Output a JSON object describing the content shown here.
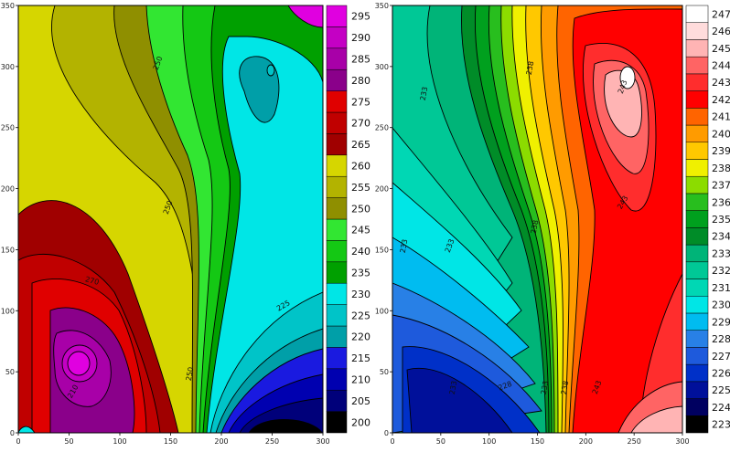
{
  "chart_data": [
    {
      "type": "heatmap",
      "subtype": "filled-contour",
      "title": "",
      "xlabel": "",
      "ylabel": "",
      "xlim": [
        0,
        300
      ],
      "ylim": [
        0,
        350
      ],
      "x_ticks": [
        "0",
        "50",
        "100",
        "150",
        "200",
        "250",
        "300"
      ],
      "y_ticks": [
        "0",
        "50",
        "100",
        "150",
        "200",
        "250",
        "300",
        "350"
      ],
      "colorbar": {
        "levels": [
          200,
          205,
          210,
          215,
          220,
          225,
          230,
          235,
          240,
          245,
          250,
          255,
          260,
          265,
          270,
          275,
          280,
          285,
          290,
          295
        ],
        "labels": [
          "200",
          "205",
          "210",
          "215",
          "220",
          "225",
          "230",
          "235",
          "240",
          "245",
          "250",
          "255",
          "260",
          "265",
          "270",
          "275",
          "280",
          "285",
          "290",
          "295"
        ],
        "colors": [
          "#000000",
          "#00007a",
          "#0000b0",
          "#1a1ae0",
          "#009fa8",
          "#00c4c8",
          "#00e6e6",
          "#00a000",
          "#14c814",
          "#32e632",
          "#8f8f00",
          "#b3b300",
          "#d6d600",
          "#a00000",
          "#c00000",
          "#e00000",
          "#8a008a",
          "#a800a8",
          "#c400c4",
          "#e000e0"
        ]
      },
      "contour_labels": [
        "250",
        "250",
        "270",
        "225",
        "250",
        "210"
      ],
      "features": [
        {
          "kind": "max",
          "value": 295,
          "x": 63,
          "y": 55
        },
        {
          "kind": "low",
          "value": 230,
          "x": 250,
          "y": 295
        },
        {
          "kind": "min",
          "value": 200,
          "x": 250,
          "y": 8
        }
      ]
    },
    {
      "type": "heatmap",
      "subtype": "filled-contour",
      "title": "",
      "xlabel": "",
      "ylabel": "",
      "xlim": [
        0,
        300
      ],
      "ylim": [
        0,
        350
      ],
      "x_ticks": [
        "0",
        "50",
        "100",
        "150",
        "200",
        "250",
        "300"
      ],
      "y_ticks": [
        "0",
        "50",
        "100",
        "150",
        "200",
        "250",
        "300",
        "350"
      ],
      "colorbar": {
        "levels": [
          223,
          224,
          225,
          226,
          227,
          228,
          229,
          230,
          231,
          232,
          233,
          234,
          235,
          236,
          237,
          238,
          239,
          240,
          241,
          242,
          243,
          244,
          245,
          246,
          247
        ],
        "labels": [
          "223",
          "224",
          "225",
          "226",
          "227",
          "228",
          "229",
          "230",
          "231",
          "232",
          "233",
          "234",
          "235",
          "236",
          "237",
          "238",
          "239",
          "240",
          "241",
          "242",
          "243",
          "244",
          "245",
          "246",
          "247"
        ],
        "colors": [
          "#000000",
          "#000060",
          "#00109a",
          "#0030c8",
          "#1e5adc",
          "#2880e6",
          "#00bcf0",
          "#00e6e6",
          "#00d7b4",
          "#00c896",
          "#00b478",
          "#008c28",
          "#00a01e",
          "#28be1e",
          "#8cdc00",
          "#f0f000",
          "#ffc800",
          "#ff9b00",
          "#ff6400",
          "#ff0000",
          "#ff2d2d",
          "#ff6464",
          "#ffb4b4",
          "#ffdcdc",
          "#ffffff"
        ]
      },
      "contour_labels": [
        "233",
        "233",
        "233",
        "238",
        "243",
        "243",
        "238",
        "233",
        "233",
        "238",
        "243",
        "228"
      ],
      "features": [
        {
          "kind": "max",
          "value": 247,
          "x": 245,
          "y": 300
        },
        {
          "kind": "min",
          "value": 224,
          "x": 60,
          "y": 55
        }
      ]
    }
  ]
}
